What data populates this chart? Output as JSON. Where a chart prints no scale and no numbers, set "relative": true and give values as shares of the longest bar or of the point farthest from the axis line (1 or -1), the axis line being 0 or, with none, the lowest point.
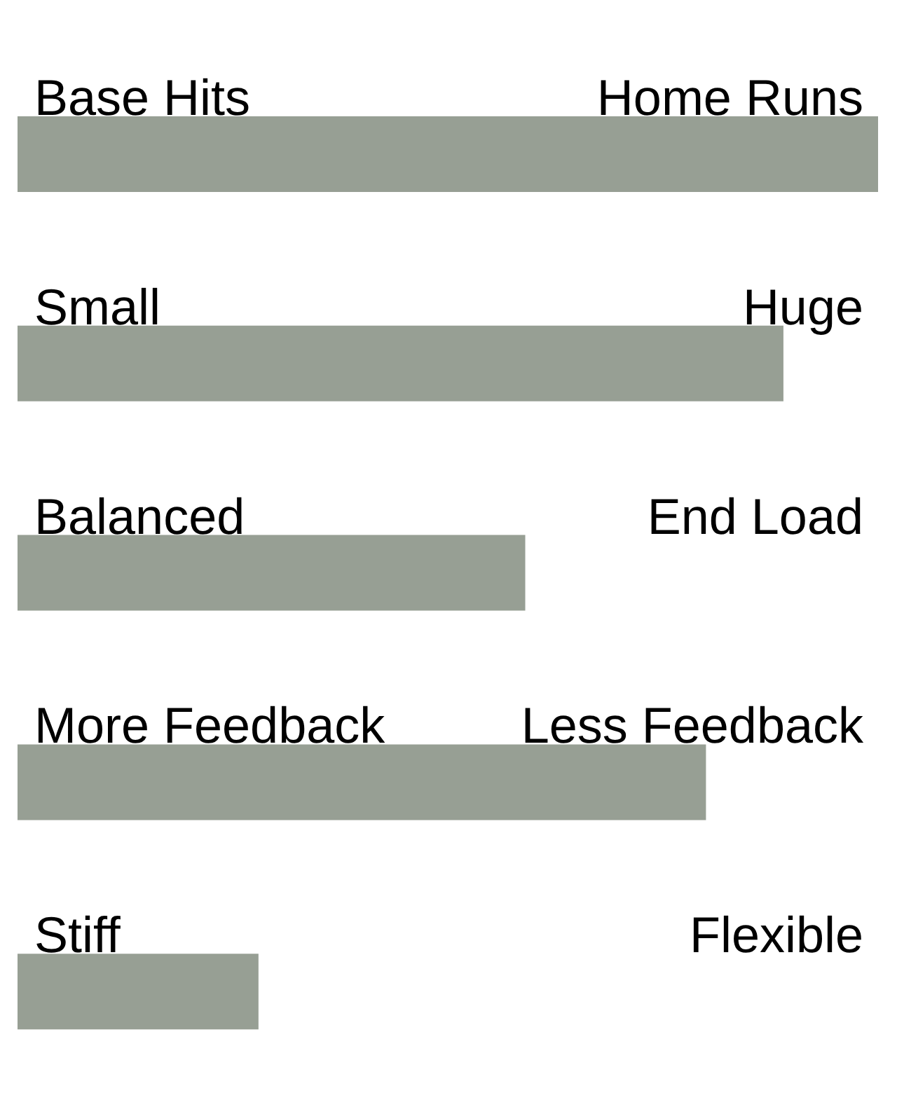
{
  "chart_data": {
    "type": "bar",
    "orientation": "horizontal",
    "relative": true,
    "categories": [
      "Base Hits",
      "Small",
      "Balanced",
      "More Feedback",
      "Stiff"
    ],
    "values": [
      1,
      0.89,
      0.59,
      0.8,
      0.28
    ],
    "color": "#979f94",
    "annotations": [
      "Home Runs",
      "Huge",
      "End Load",
      "Less Feedback",
      "Flexible"
    ]
  }
}
